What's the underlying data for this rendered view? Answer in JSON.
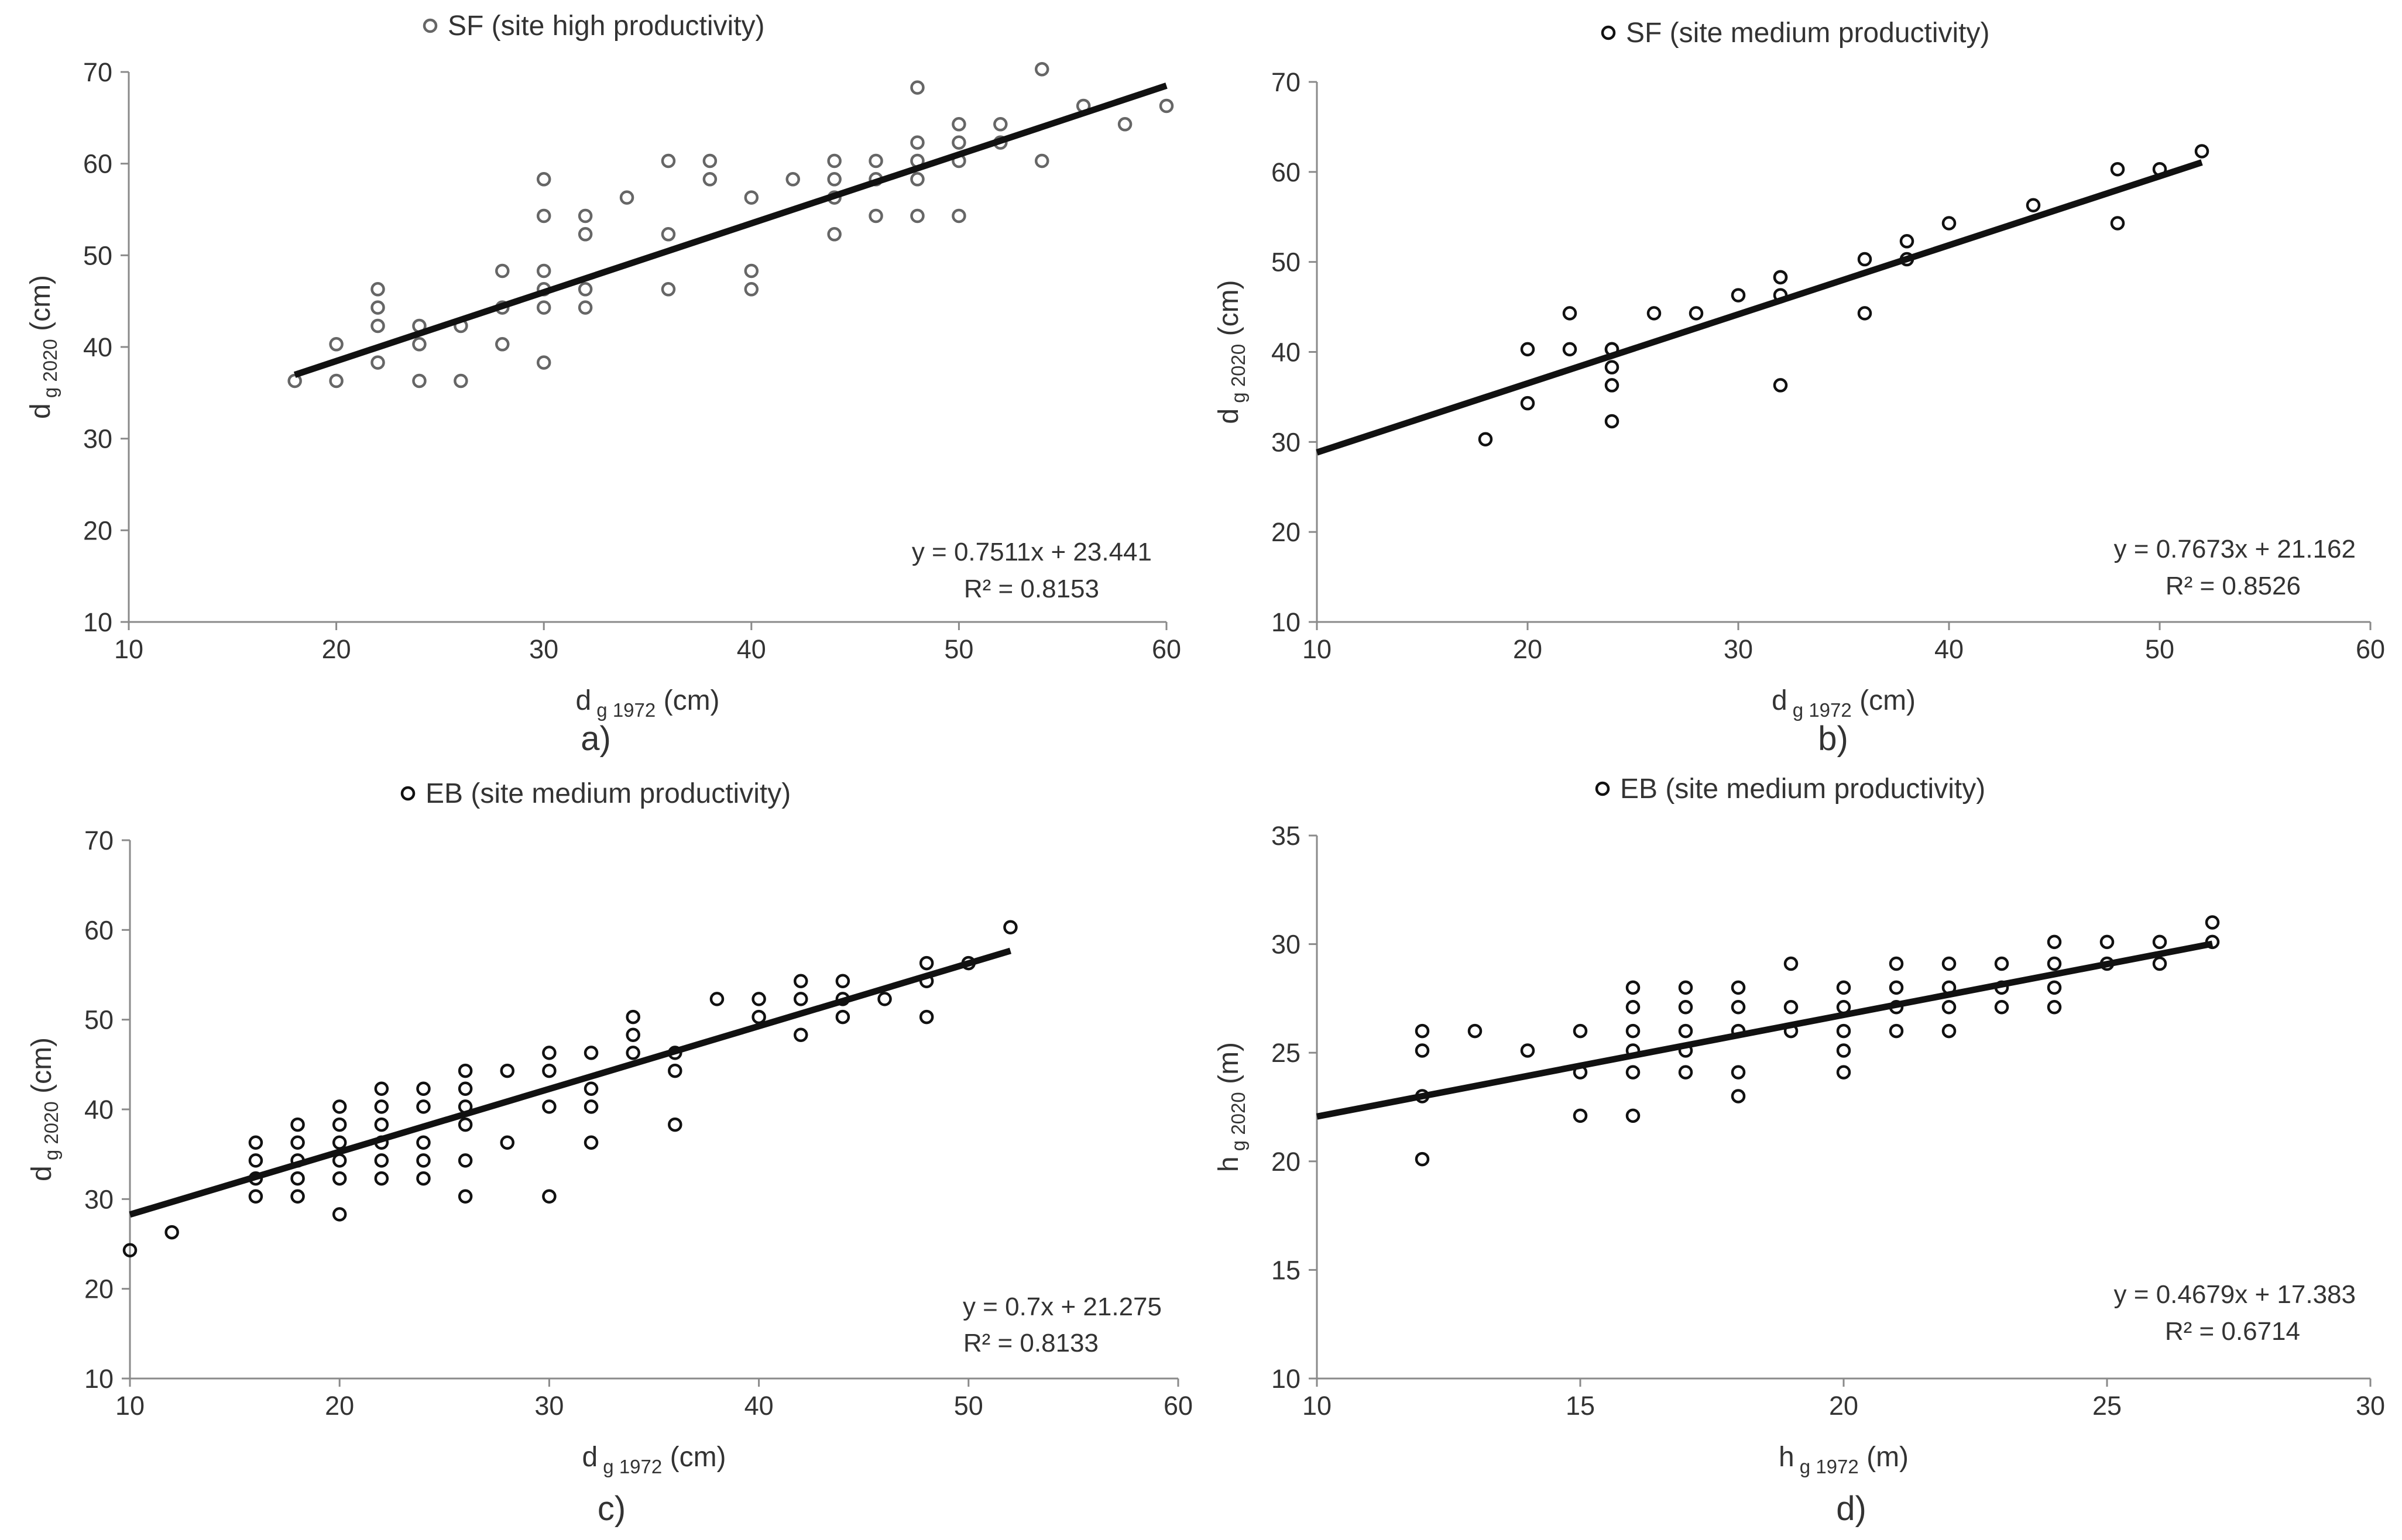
{
  "chart_data": [
    {
      "type": "scatter",
      "panel": "a)",
      "legend": "SF (site high productivity)",
      "xlabel_main": "d",
      "xlabel_sub": "g 1972",
      "xlabel_unit": "(cm)",
      "ylabel_main": "d",
      "ylabel_sub": "g 2020",
      "ylabel_unit": "(cm)",
      "xlim": [
        10,
        60
      ],
      "ylim": [
        10,
        70
      ],
      "xticks": [
        10,
        20,
        30,
        40,
        50,
        60
      ],
      "yticks": [
        10,
        20,
        30,
        40,
        50,
        60,
        70
      ],
      "equation": "y = 0.7511x + 23.441",
      "r2": "R² = 0.8153",
      "slope": 0.7511,
      "intercept": 23.441,
      "trend_x": [
        18,
        60
      ],
      "marker_color": "#666666",
      "x": [
        18,
        20,
        20,
        22,
        22,
        22,
        22,
        24,
        24,
        24,
        26,
        26,
        28,
        28,
        28,
        30,
        30,
        30,
        30,
        30,
        30,
        32,
        32,
        32,
        32,
        34,
        36,
        36,
        36,
        38,
        38,
        40,
        40,
        40,
        42,
        44,
        44,
        44,
        44,
        46,
        46,
        46,
        48,
        48,
        48,
        48,
        48,
        50,
        50,
        50,
        50,
        52,
        52,
        54,
        54,
        56,
        58,
        60
      ],
      "y": [
        36.3,
        36.3,
        40.3,
        38.3,
        42.3,
        44.3,
        46.3,
        36.3,
        40.3,
        42.3,
        36.3,
        42.3,
        40.3,
        44.3,
        48.3,
        38.3,
        44.3,
        46.3,
        48.3,
        54.3,
        58.3,
        44.3,
        46.3,
        52.3,
        54.3,
        56.3,
        46.3,
        52.3,
        60.3,
        58.3,
        60.3,
        46.3,
        48.3,
        56.3,
        58.3,
        52.3,
        56.3,
        58.3,
        60.3,
        54.3,
        58.3,
        60.3,
        54.3,
        58.3,
        60.3,
        62.3,
        68.3,
        54.3,
        60.3,
        62.3,
        64.3,
        62.3,
        64.3,
        60.3,
        70.3,
        66.3,
        64.3,
        66.3
      ]
    },
    {
      "type": "scatter",
      "panel": "b)",
      "legend": "SF (site medium productivity)",
      "xlabel_main": "d",
      "xlabel_sub": "g 1972",
      "xlabel_unit": "(cm)",
      "ylabel_main": "d",
      "ylabel_sub": "g 2020",
      "ylabel_unit": "(cm)",
      "xlim": [
        10,
        60
      ],
      "ylim": [
        10,
        70
      ],
      "xticks": [
        10,
        20,
        30,
        40,
        50,
        60
      ],
      "yticks": [
        10,
        20,
        30,
        40,
        50,
        60,
        70
      ],
      "equation": "y = 0.7673x + 21.162",
      "r2": "R² = 0.8526",
      "slope": 0.7673,
      "intercept": 21.162,
      "trend_x": [
        10,
        52
      ],
      "marker_color": "#111111",
      "x": [
        18,
        20,
        20,
        22,
        22,
        24,
        24,
        24,
        24,
        24,
        26,
        28,
        30,
        32,
        32,
        32,
        32,
        36,
        36,
        38,
        38,
        40,
        44,
        48,
        48,
        50,
        52
      ],
      "y": [
        30.3,
        34.3,
        40.3,
        40.3,
        44.3,
        32.3,
        36.3,
        38.3,
        40.3,
        40.3,
        44.3,
        44.3,
        46.3,
        36.3,
        46.3,
        48.3,
        48.3,
        44.3,
        50.3,
        50.3,
        52.3,
        54.3,
        56.3,
        54.3,
        60.3,
        60.3,
        62.3
      ]
    },
    {
      "type": "scatter",
      "panel": "c)",
      "legend": "EB (site medium productivity)",
      "xlabel_main": "d",
      "xlabel_sub": "g 1972",
      "xlabel_unit": "(cm)",
      "ylabel_main": "d",
      "ylabel_sub": "g 2020",
      "ylabel_unit": "(cm)",
      "xlim": [
        10,
        60
      ],
      "ylim": [
        10,
        70
      ],
      "xticks": [
        10,
        20,
        30,
        40,
        50,
        60
      ],
      "yticks": [
        10,
        20,
        30,
        40,
        50,
        60,
        70
      ],
      "equation": "y = 0.7x + 21.275",
      "r2": "R² = 0.8133",
      "slope": 0.7,
      "intercept": 21.275,
      "trend_x": [
        10,
        52
      ],
      "marker_color": "#111111",
      "x": [
        10,
        12,
        16,
        16,
        16,
        16,
        18,
        18,
        18,
        18,
        18,
        20,
        20,
        20,
        20,
        20,
        20,
        22,
        22,
        22,
        22,
        22,
        22,
        24,
        24,
        24,
        24,
        24,
        26,
        26,
        26,
        26,
        26,
        26,
        28,
        28,
        30,
        30,
        30,
        30,
        32,
        32,
        32,
        32,
        34,
        34,
        34,
        36,
        36,
        36,
        38,
        40,
        40,
        42,
        42,
        42,
        44,
        44,
        44,
        46,
        48,
        48,
        48,
        50,
        52
      ],
      "y": [
        24.3,
        26.3,
        30.3,
        32.3,
        34.3,
        36.3,
        30.3,
        32.3,
        34.3,
        36.3,
        38.3,
        28.3,
        32.3,
        34.3,
        36.3,
        38.3,
        40.3,
        32.3,
        34.3,
        36.3,
        38.3,
        40.3,
        42.3,
        32.3,
        34.3,
        36.3,
        40.3,
        42.3,
        30.3,
        34.3,
        38.3,
        40.3,
        42.3,
        44.3,
        36.3,
        44.3,
        30.3,
        40.3,
        44.3,
        46.3,
        36.3,
        40.3,
        42.3,
        46.3,
        46.3,
        48.3,
        50.3,
        38.3,
        44.3,
        46.3,
        52.3,
        50.3,
        52.3,
        48.3,
        52.3,
        54.3,
        50.3,
        52.3,
        54.3,
        52.3,
        50.3,
        54.3,
        56.3,
        56.3,
        60.3
      ]
    },
    {
      "type": "scatter",
      "panel": "d)",
      "legend": "EB (site medium productivity)",
      "xlabel_main": "h",
      "xlabel_sub": "g 1972",
      "xlabel_unit": "(m)",
      "ylabel_main": "h",
      "ylabel_sub": "g 2020",
      "ylabel_unit": "(m)",
      "xlim": [
        10,
        30
      ],
      "ylim": [
        10,
        35
      ],
      "xticks": [
        10,
        15,
        20,
        25,
        30
      ],
      "yticks": [
        10,
        15,
        20,
        25,
        30,
        35
      ],
      "equation": "y = 0.4679x + 17.383",
      "r2": "R² = 0.6714",
      "slope": 0.4679,
      "intercept": 17.383,
      "trend_x": [
        10,
        27
      ],
      "marker_color": "#111111",
      "x": [
        12,
        12,
        12,
        12,
        13,
        14,
        15,
        15,
        15,
        16,
        16,
        16,
        16,
        16,
        16,
        17,
        17,
        17,
        17,
        17,
        18,
        18,
        18,
        18,
        18,
        19,
        19,
        19,
        20,
        20,
        20,
        20,
        20,
        21,
        21,
        21,
        21,
        22,
        22,
        22,
        22,
        23,
        23,
        23,
        24,
        24,
        24,
        24,
        25,
        25,
        26,
        26,
        27,
        27
      ],
      "y": [
        20.1,
        23.0,
        25.1,
        26.0,
        26.0,
        25.1,
        22.1,
        24.1,
        26.0,
        22.1,
        24.1,
        25.1,
        26.0,
        27.1,
        28.0,
        24.1,
        25.1,
        26.0,
        27.1,
        28.0,
        23.0,
        24.1,
        26.0,
        27.1,
        28.0,
        26.0,
        27.1,
        29.1,
        24.1,
        25.1,
        26.0,
        27.1,
        28.0,
        26.0,
        27.1,
        28.0,
        29.1,
        26.0,
        27.1,
        28.0,
        29.1,
        27.1,
        28.0,
        29.1,
        27.1,
        28.0,
        29.1,
        30.1,
        29.1,
        30.1,
        29.1,
        30.1,
        30.1,
        31.0
      ]
    }
  ]
}
